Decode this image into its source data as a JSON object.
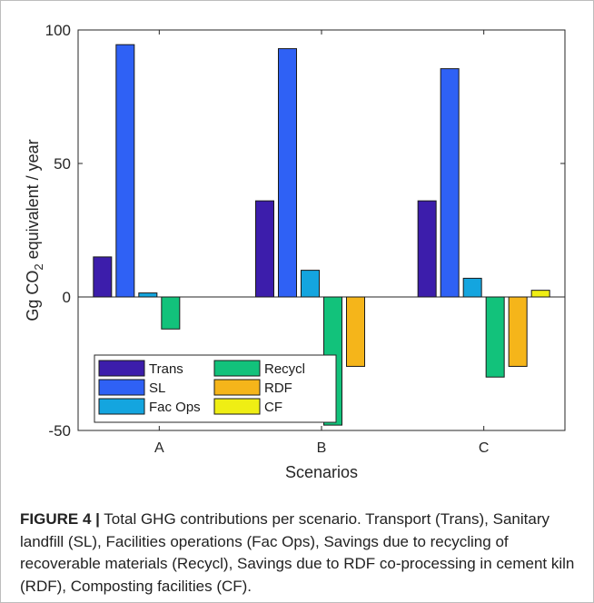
{
  "chart_data": {
    "type": "bar",
    "categories": [
      "A",
      "B",
      "C"
    ],
    "series": [
      {
        "name": "Trans",
        "color": "#3c1dab",
        "values": [
          15,
          36,
          36
        ]
      },
      {
        "name": "SL",
        "color": "#2f61f5",
        "values": [
          94.5,
          93,
          85.5
        ]
      },
      {
        "name": "Fac Ops",
        "color": "#14a5df",
        "values": [
          1.5,
          10,
          7
        ]
      },
      {
        "name": "Recycl",
        "color": "#12c27b",
        "values": [
          -12,
          -48,
          -30
        ]
      },
      {
        "name": "RDF",
        "color": "#f5b51a",
        "values": [
          0,
          -26,
          -26
        ]
      },
      {
        "name": "CF",
        "color": "#efee14",
        "values": [
          0,
          0,
          2.5
        ]
      }
    ],
    "ylim": [
      -50,
      100
    ],
    "yticks": [
      "-50",
      "0",
      "50",
      "100"
    ],
    "xlabel": "Scenarios",
    "ylabel_main": "Gg CO",
    "ylabel_sub": "2",
    "ylabel_rest": " equivalent / year",
    "grid": false,
    "legend_placement": "lower-left",
    "legend_columns": 2
  },
  "caption": {
    "label": "FIGURE 4 |",
    "text": " Total GHG contributions per scenario. Transport (Trans), Sanitary landfill (SL), Facilities operations (Fac Ops), Savings due to recycling of recoverable materials (Recycl), Savings due to RDF co-processing in cement kiln (RDF), Composting facilities (CF)."
  }
}
